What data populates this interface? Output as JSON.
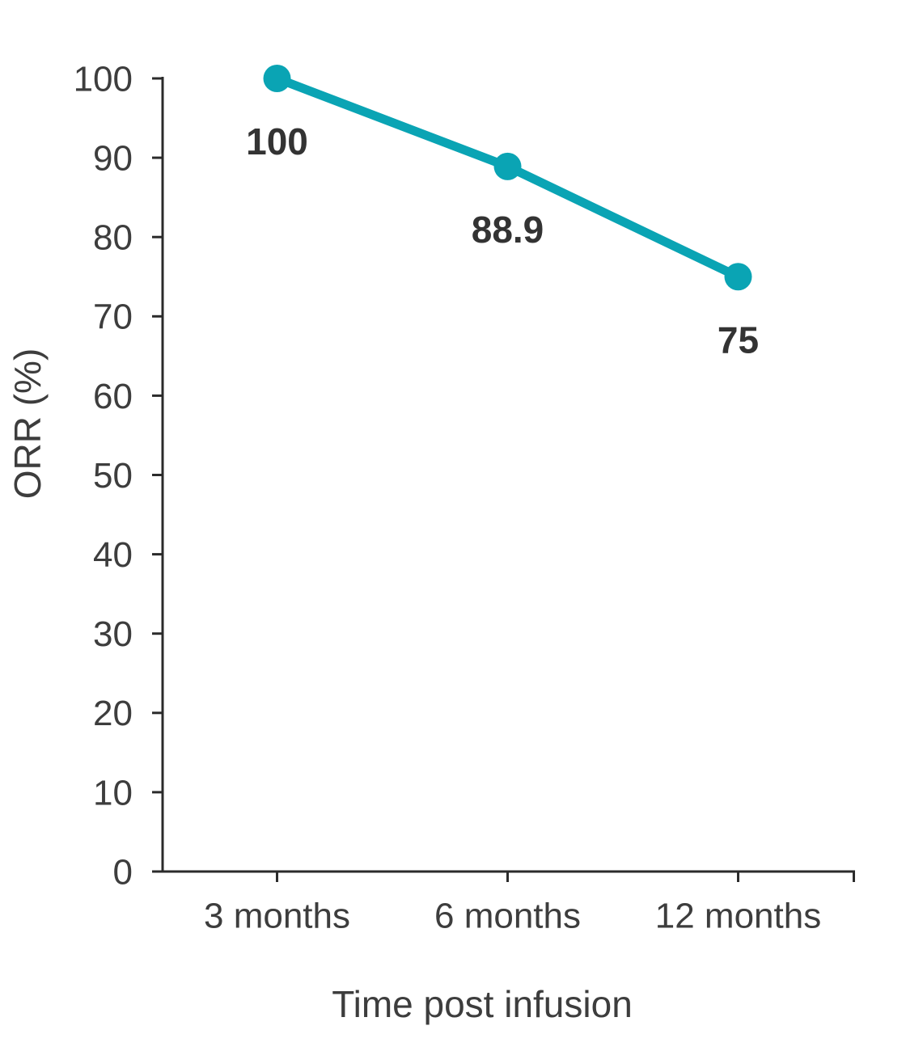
{
  "chart_data": {
    "type": "line",
    "title": "",
    "categories": [
      "3 months",
      "6 months",
      "12 months"
    ],
    "series": [
      {
        "name": "ORR",
        "values": [
          100,
          88.9,
          75
        ]
      }
    ],
    "data_labels": [
      "100",
      "88.9",
      "75"
    ],
    "xlabel": "Time post infusion",
    "ylabel": "ORR (%)",
    "ylim": [
      0,
      100
    ],
    "yticks": [
      0,
      10,
      20,
      30,
      40,
      50,
      60,
      70,
      80,
      90,
      100
    ],
    "grid": false,
    "legend_position": "none",
    "colors": {
      "line": "#0AA4B4",
      "marker": "#0AA4B4",
      "axis": "#2B2B2B",
      "tick_text": "#3D3D3D",
      "data_label_text": "#333333",
      "background": "#FFFFFF"
    }
  }
}
